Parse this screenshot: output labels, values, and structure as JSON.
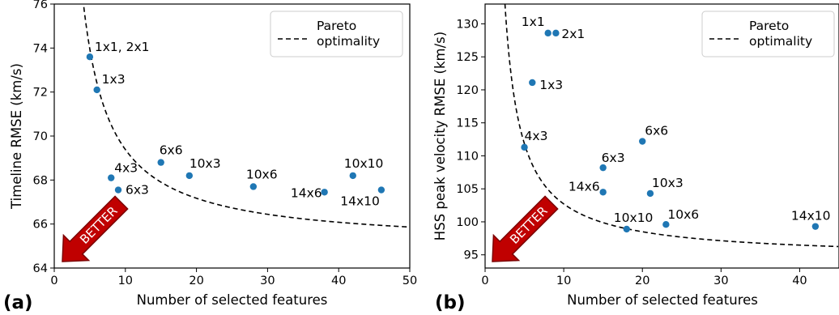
{
  "colors": {
    "point": "#1f77b4",
    "curve": "#000000",
    "arrow_fill": "#c00000",
    "arrow_stroke": "#7a0000"
  },
  "chart_data": [
    {
      "type": "scatter",
      "panel_label": "(a)",
      "xlabel": "Number of selected features",
      "ylabel": "Timeline RMSE (km/s)",
      "xlim": [
        0,
        50
      ],
      "ylim": [
        64,
        76
      ],
      "xticks": [
        0,
        10,
        20,
        30,
        40,
        50
      ],
      "yticks": [
        64,
        66,
        68,
        70,
        72,
        74,
        76
      ],
      "grid": false,
      "legend": {
        "position": "top-right",
        "entries": [
          "Pareto\noptimality"
        ]
      },
      "arrow_text": "BETTER",
      "pareto_curve": {
        "a": 65.0,
        "b": 43.0,
        "c": 0.2
      },
      "points": [
        {
          "x": 5,
          "y": 73.6,
          "label": "1x1, 2x1"
        },
        {
          "x": 6,
          "y": 72.1,
          "label": "1x3"
        },
        {
          "x": 8,
          "y": 68.1,
          "label": "4x3"
        },
        {
          "x": 9,
          "y": 67.55,
          "label": "6x3"
        },
        {
          "x": 15,
          "y": 68.8,
          "label": "6x6"
        },
        {
          "x": 19,
          "y": 68.2,
          "label": "10x3"
        },
        {
          "x": 28,
          "y": 67.7,
          "label": "10x6"
        },
        {
          "x": 38,
          "y": 67.45,
          "label": "14x6"
        },
        {
          "x": 42,
          "y": 68.2,
          "label": "10x10"
        },
        {
          "x": 46,
          "y": 67.55,
          "label": "14x10"
        }
      ]
    },
    {
      "type": "scatter",
      "panel_label": "(b)",
      "xlabel": "Number of selected features",
      "ylabel": "HSS peak velocity RMSE (km/s)",
      "xlim": [
        0,
        45
      ],
      "ylim": [
        93,
        133
      ],
      "xticks": [
        0,
        10,
        20,
        30,
        40
      ],
      "yticks": [
        95,
        100,
        105,
        110,
        115,
        120,
        125,
        130
      ],
      "grid": false,
      "legend": {
        "position": "top-right",
        "entries": [
          "Pareto\noptimality"
        ]
      },
      "arrow_text": "BETTER",
      "pareto_curve": {
        "a": 94.5,
        "b": 78.0,
        "c": 0.5
      },
      "points": [
        {
          "x": 8,
          "y": 128.6,
          "label": "1x1"
        },
        {
          "x": 9,
          "y": 128.6,
          "label": "2x1"
        },
        {
          "x": 6,
          "y": 121.1,
          "label": "1x3"
        },
        {
          "x": 5,
          "y": 111.3,
          "label": "4x3"
        },
        {
          "x": 20,
          "y": 112.2,
          "label": "6x6"
        },
        {
          "x": 15,
          "y": 108.2,
          "label": "6x3"
        },
        {
          "x": 15,
          "y": 104.5,
          "label": "14x6"
        },
        {
          "x": 21,
          "y": 104.3,
          "label": "10x3"
        },
        {
          "x": 18,
          "y": 98.9,
          "label": "10x10"
        },
        {
          "x": 23,
          "y": 99.6,
          "label": "10x6"
        },
        {
          "x": 42,
          "y": 99.3,
          "label": "14x10"
        }
      ]
    }
  ]
}
